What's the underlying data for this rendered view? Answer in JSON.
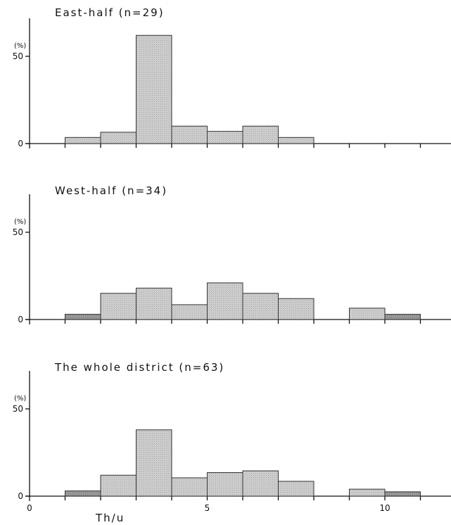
{
  "chart_data": [
    {
      "type": "bar",
      "title": "East-half (n=29)",
      "ylabel": "(%)",
      "xlabel": "",
      "xlim": [
        0,
        12
      ],
      "ylim": [
        0,
        65
      ],
      "bin_edges": [
        1,
        2,
        3,
        4,
        5,
        6,
        7,
        8,
        9,
        10,
        11
      ],
      "values": [
        3.5,
        6.5,
        62,
        10,
        7,
        10,
        3.5,
        0,
        0,
        0
      ],
      "yticks": [
        "0",
        "50"
      ]
    },
    {
      "type": "bar",
      "title": "West-half (n=34)",
      "ylabel": "(%)",
      "xlabel": "",
      "xlim": [
        0,
        12
      ],
      "ylim": [
        0,
        65
      ],
      "bin_edges": [
        1,
        2,
        3,
        4,
        5,
        6,
        7,
        8,
        9,
        10,
        11
      ],
      "values": [
        3,
        15,
        18,
        8.5,
        21,
        15,
        12,
        0,
        6.5,
        3
      ],
      "yticks": [
        "0",
        "50"
      ]
    },
    {
      "type": "bar",
      "title": "The whole district (n=63)",
      "ylabel": "(%)",
      "xlabel": "Th/u",
      "xlim": [
        0,
        12
      ],
      "ylim": [
        0,
        65
      ],
      "bin_edges": [
        1,
        2,
        3,
        4,
        5,
        6,
        7,
        8,
        9,
        10,
        11
      ],
      "values": [
        3,
        12,
        38,
        10.5,
        13.5,
        14.5,
        8.5,
        0,
        4,
        2.5
      ],
      "yticks": [
        "0",
        "50"
      ],
      "xticks": [
        "0",
        "5",
        "10"
      ]
    }
  ],
  "colors": {
    "bar_fill": "#c9c9c9",
    "bar_dark_fill": "#8e8e8e"
  }
}
